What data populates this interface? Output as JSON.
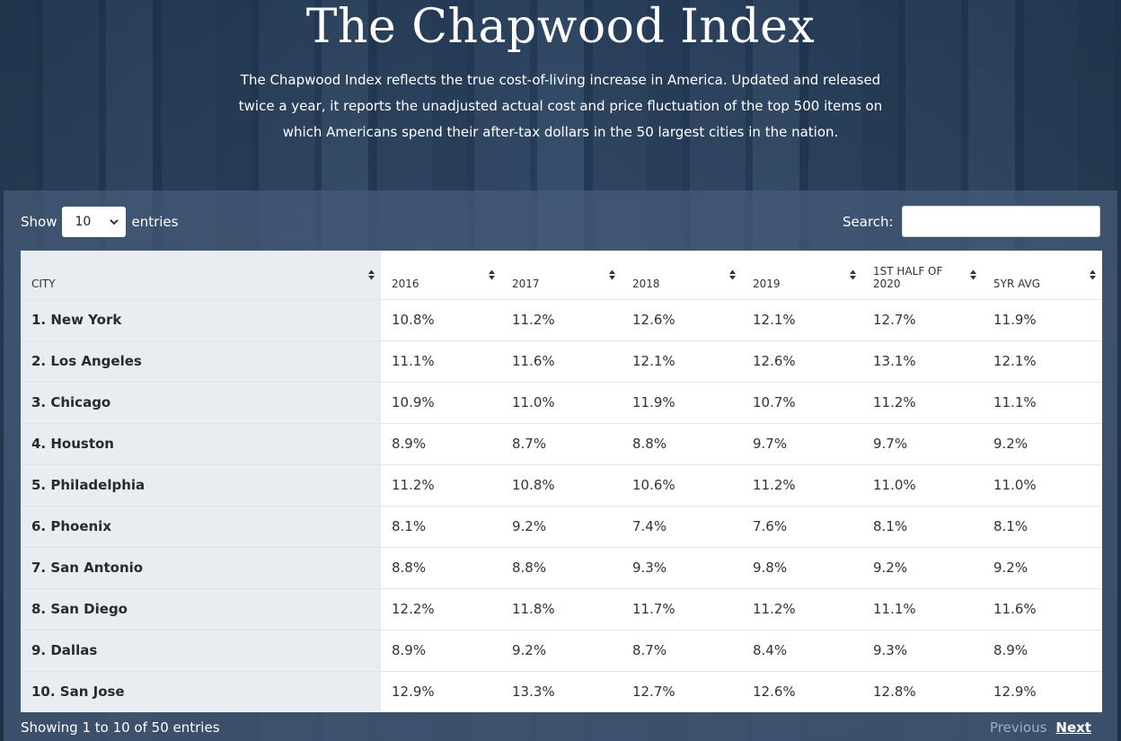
{
  "header": {
    "title": "The Chapwood Index",
    "description": "The Chapwood Index reflects the true cost-of-living increase in America. Updated and released twice a year, it reports the unadjusted actual cost and price fluctuation of the top 500 items on which Americans spend their after-tax dollars in the 50 largest cities in the nation."
  },
  "controls": {
    "show_label": "Show",
    "entries_label": "entries",
    "length_value": "10",
    "search_label": "Search:",
    "search_value": ""
  },
  "table": {
    "columns": [
      "CITY",
      "2016",
      "2017",
      "2018",
      "2019",
      "1ST HALF OF 2020",
      "5YR AVG"
    ],
    "rows": [
      [
        "1. New York",
        "10.8%",
        "11.2%",
        "12.6%",
        "12.1%",
        "12.7%",
        "11.9%"
      ],
      [
        "2. Los Angeles",
        "11.1%",
        "11.6%",
        "12.1%",
        "12.6%",
        "13.1%",
        "12.1%"
      ],
      [
        "3. Chicago",
        "10.9%",
        "11.0%",
        "11.9%",
        "10.7%",
        "11.2%",
        "11.1%"
      ],
      [
        "4. Houston",
        "8.9%",
        "8.7%",
        "8.8%",
        "9.7%",
        "9.7%",
        "9.2%"
      ],
      [
        "5. Philadelphia",
        "11.2%",
        "10.8%",
        "10.6%",
        "11.2%",
        "11.0%",
        "11.0%"
      ],
      [
        "6. Phoenix",
        "8.1%",
        "9.2%",
        "7.4%",
        "7.6%",
        "8.1%",
        "8.1%"
      ],
      [
        "7. San Antonio",
        "8.8%",
        "8.8%",
        "9.3%",
        "9.8%",
        "9.2%",
        "9.2%"
      ],
      [
        "8. San Diego",
        "12.2%",
        "11.8%",
        "11.7%",
        "11.2%",
        "11.1%",
        "11.6%"
      ],
      [
        "9. Dallas",
        "8.9%",
        "9.2%",
        "8.7%",
        "8.4%",
        "9.3%",
        "8.9%"
      ],
      [
        "10. San Jose",
        "12.9%",
        "13.3%",
        "12.7%",
        "12.6%",
        "12.8%",
        "12.9%"
      ]
    ]
  },
  "footer": {
    "info": "Showing 1 to 10 of 50 entries",
    "previous_label": "Previous",
    "next_label": "Next"
  },
  "icons": {
    "sort": "sort-arrows-icon",
    "select": "chevron-down-icon"
  },
  "colors": {
    "panel": "#465c78",
    "city_column": "#e8edf1",
    "pager_disabled": "#9fb0c3"
  }
}
